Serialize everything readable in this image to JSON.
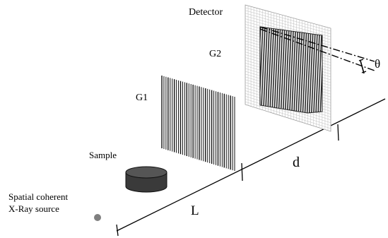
{
  "labels": {
    "detector": "Detector",
    "g2": "G2",
    "g1": "G1",
    "sample": "Sample",
    "source_line1": "Spatial coherent",
    "source_line2": "X-Ray source",
    "distance_l": "L",
    "distance_d": "d",
    "angle": "θ"
  },
  "colors": {
    "line": "#000000",
    "detector_grid": "#bdbdbd",
    "sample_body": "#3a3a3a",
    "source_dot": "#7f7f7f"
  }
}
